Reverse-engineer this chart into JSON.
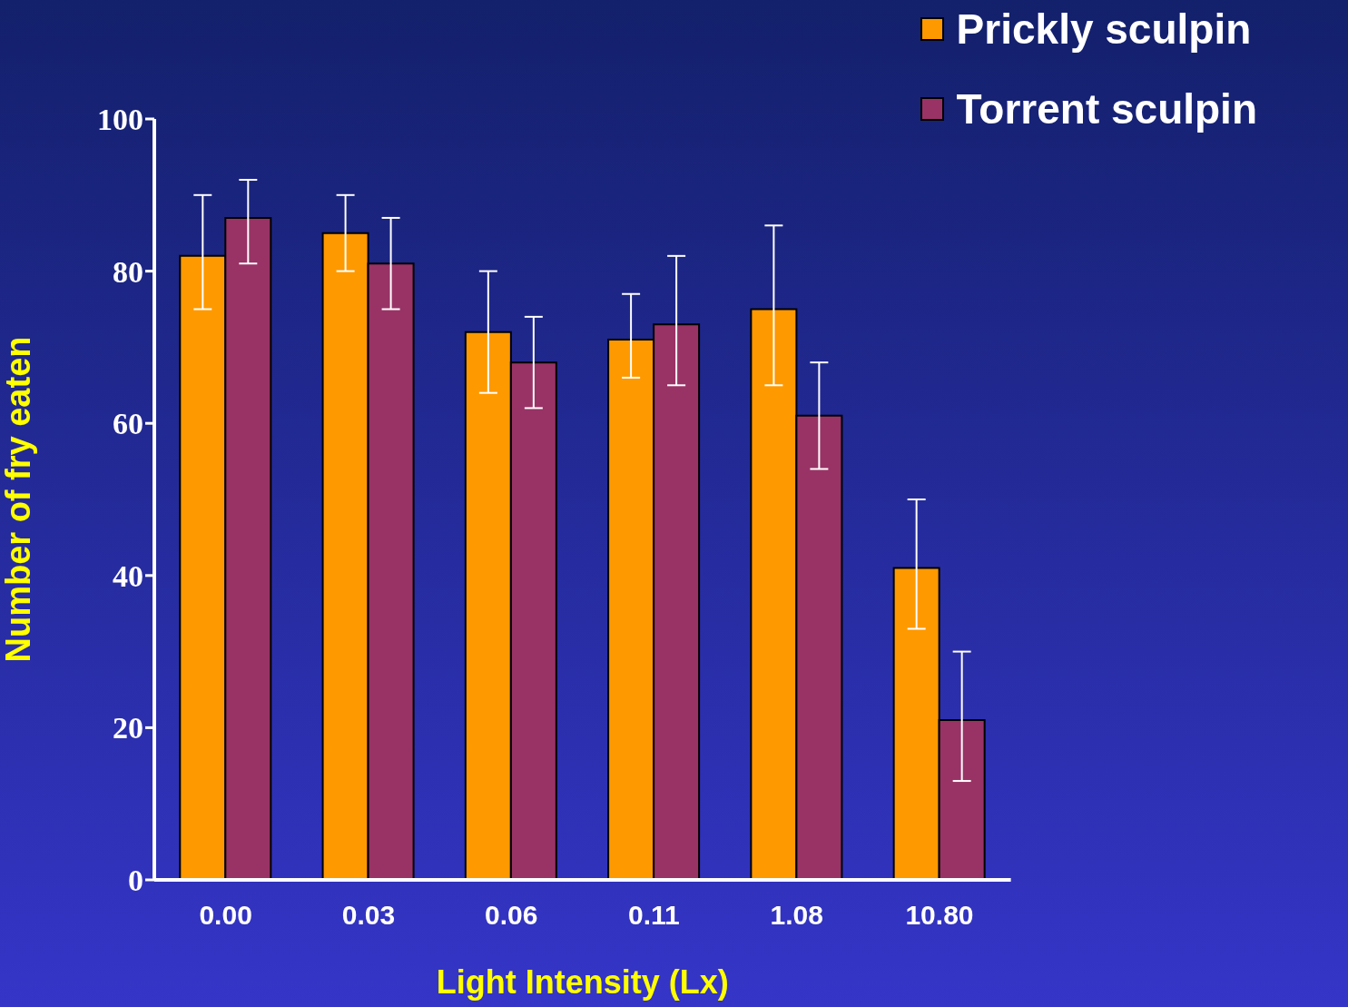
{
  "chart_data": {
    "type": "bar",
    "xlabel": "Light Intensity (Lx)",
    "ylabel": "Number of fry eaten",
    "categories": [
      "0.00",
      "0.03",
      "0.06",
      "0.11",
      "1.08",
      "10.80"
    ],
    "series": [
      {
        "name": "Prickly sculpin",
        "color": "#ff9900",
        "values": [
          82,
          85,
          72,
          71,
          75,
          41
        ],
        "errors": [
          [
            75,
            90
          ],
          [
            80,
            90
          ],
          [
            64,
            80
          ],
          [
            66,
            77
          ],
          [
            65,
            86
          ],
          [
            33,
            50
          ]
        ]
      },
      {
        "name": "Torrent sculpin",
        "color": "#993366",
        "values": [
          87,
          81,
          68,
          73,
          61,
          21
        ],
        "errors": [
          [
            81,
            92
          ],
          [
            75,
            87
          ],
          [
            62,
            74
          ],
          [
            65,
            82
          ],
          [
            54,
            68
          ],
          [
            13,
            30
          ]
        ]
      }
    ],
    "ylim": [
      0,
      100
    ],
    "yticks": [
      0,
      20,
      40,
      60,
      80,
      100
    ],
    "grid": false,
    "legend": "top right"
  }
}
